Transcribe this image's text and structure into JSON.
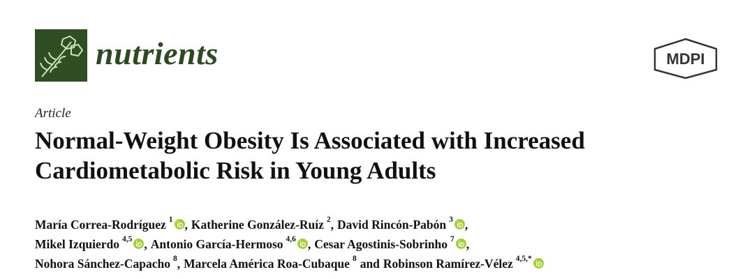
{
  "header": {
    "journal": "nutrients",
    "publisher": "MDPI"
  },
  "article_type": "Article",
  "title_lines": [
    "Normal-Weight Obesity Is Associated with Increased",
    "Cardiometabolic Risk in Young Adults"
  ],
  "author_lines": [
    [
      {
        "name": "María Correa-Rodríguez",
        "sup": "1",
        "orcid": true,
        "sep": ","
      },
      {
        "name": "Katherine González-Ruíz",
        "sup": "2",
        "orcid": false,
        "sep": ","
      },
      {
        "name": "David Rincón-Pabón",
        "sup": "3",
        "orcid": true,
        "sep": ","
      }
    ],
    [
      {
        "name": "Mikel Izquierdo",
        "sup": "4,5",
        "orcid": true,
        "sep": ","
      },
      {
        "name": "Antonio García-Hermoso",
        "sup": "4,6",
        "orcid": true,
        "sep": ","
      },
      {
        "name": "Cesar Agostinis-Sobrinho",
        "sup": "7",
        "orcid": true,
        "sep": ","
      }
    ],
    [
      {
        "name": "Nohora Sánchez-Capacho",
        "sup": "8",
        "orcid": false,
        "sep": ","
      },
      {
        "name": "Marcela América Roa-Cubaque",
        "sup": "8",
        "orcid": false,
        "sep": "and"
      },
      {
        "name": "Robinson Ramírez-Vélez",
        "sup": "4,5,*",
        "orcid": true
      }
    ]
  ]
}
